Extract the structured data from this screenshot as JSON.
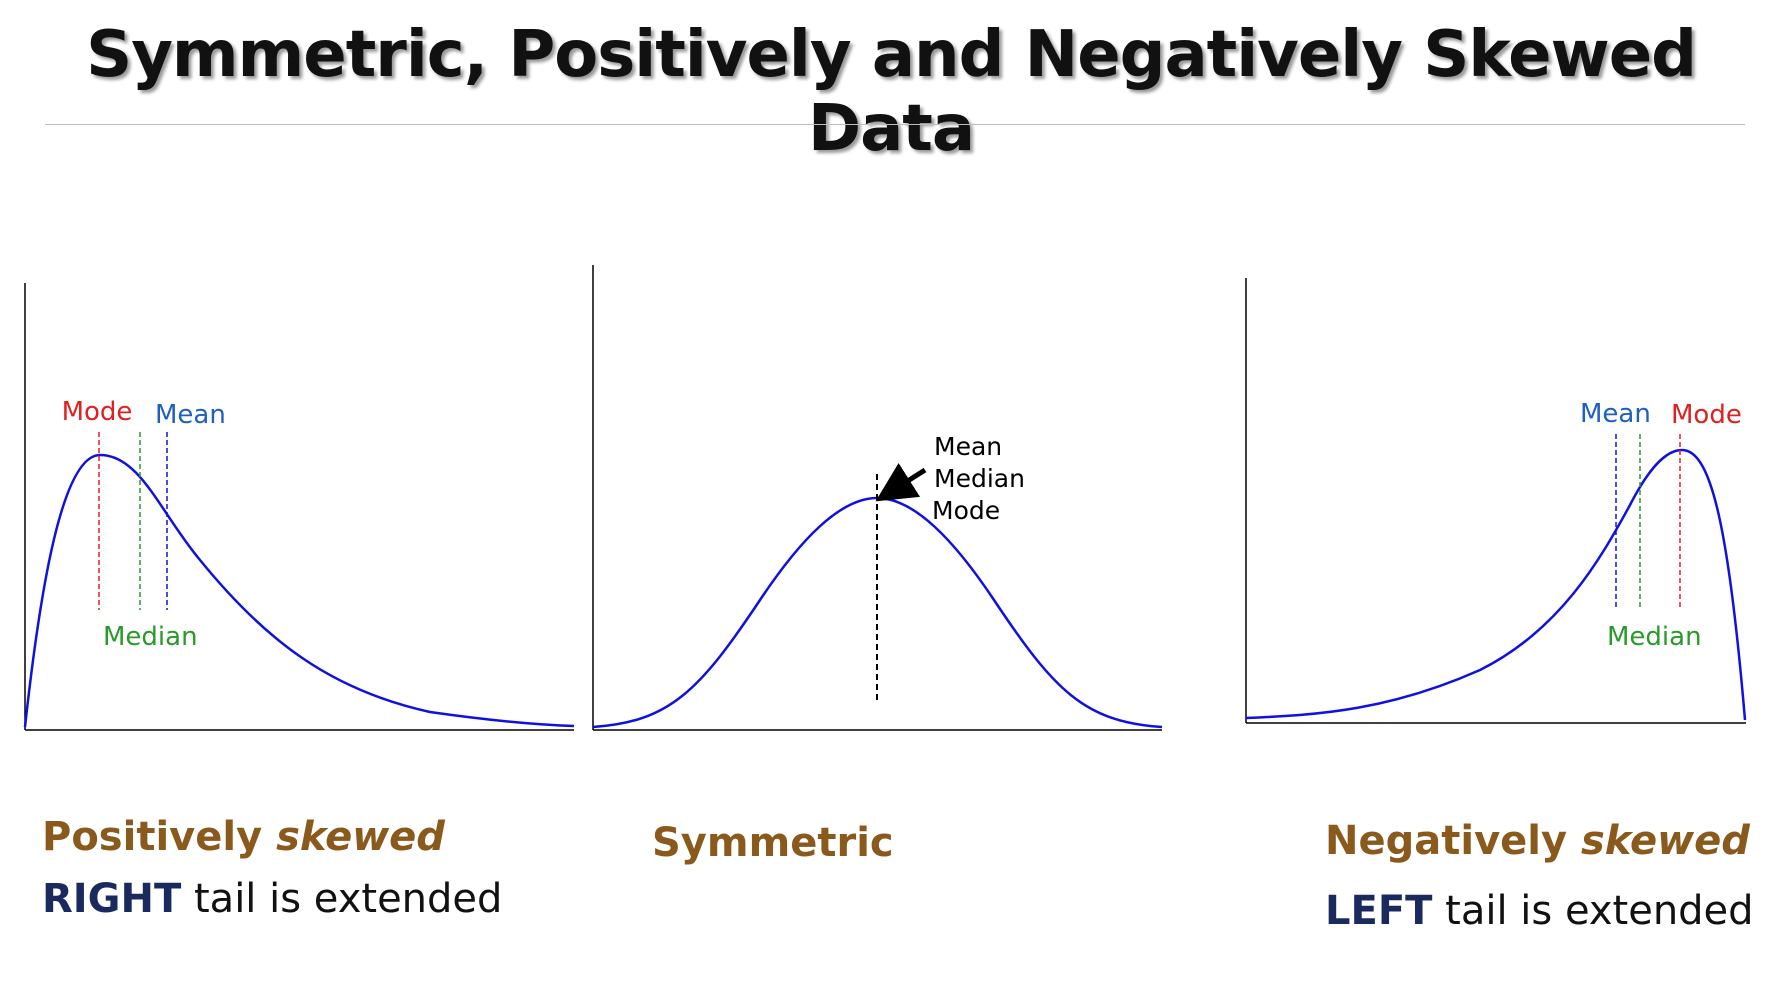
{
  "title": "Symmetric, Positively and Negatively Skewed Data",
  "panels": {
    "positive": {
      "labels": {
        "mode": "Mode",
        "mean": "Mean",
        "median": "Median"
      },
      "caption_main": "Positively",
      "caption_italic": "skewed",
      "sub_bold": "RIGHT",
      "sub_rest": " tail is extended"
    },
    "symmetric": {
      "labels": {
        "mean": "Mean",
        "median": "Median",
        "mode": "Mode"
      },
      "caption_main": "Symmetric"
    },
    "negative": {
      "labels": {
        "mean": "Mean",
        "mode": "Mode",
        "median": "Median"
      },
      "caption_main": "Negatively",
      "caption_italic": "skewed",
      "sub_bold": "LEFT",
      "sub_rest": " tail is extended"
    }
  },
  "colors": {
    "curve": "#1010e0",
    "mode": "#e02020",
    "mean": "#1e5fc0",
    "median": "#2a9a2a",
    "caption": "#8a5a1c",
    "sub_bold": "#1a2a5e"
  }
}
